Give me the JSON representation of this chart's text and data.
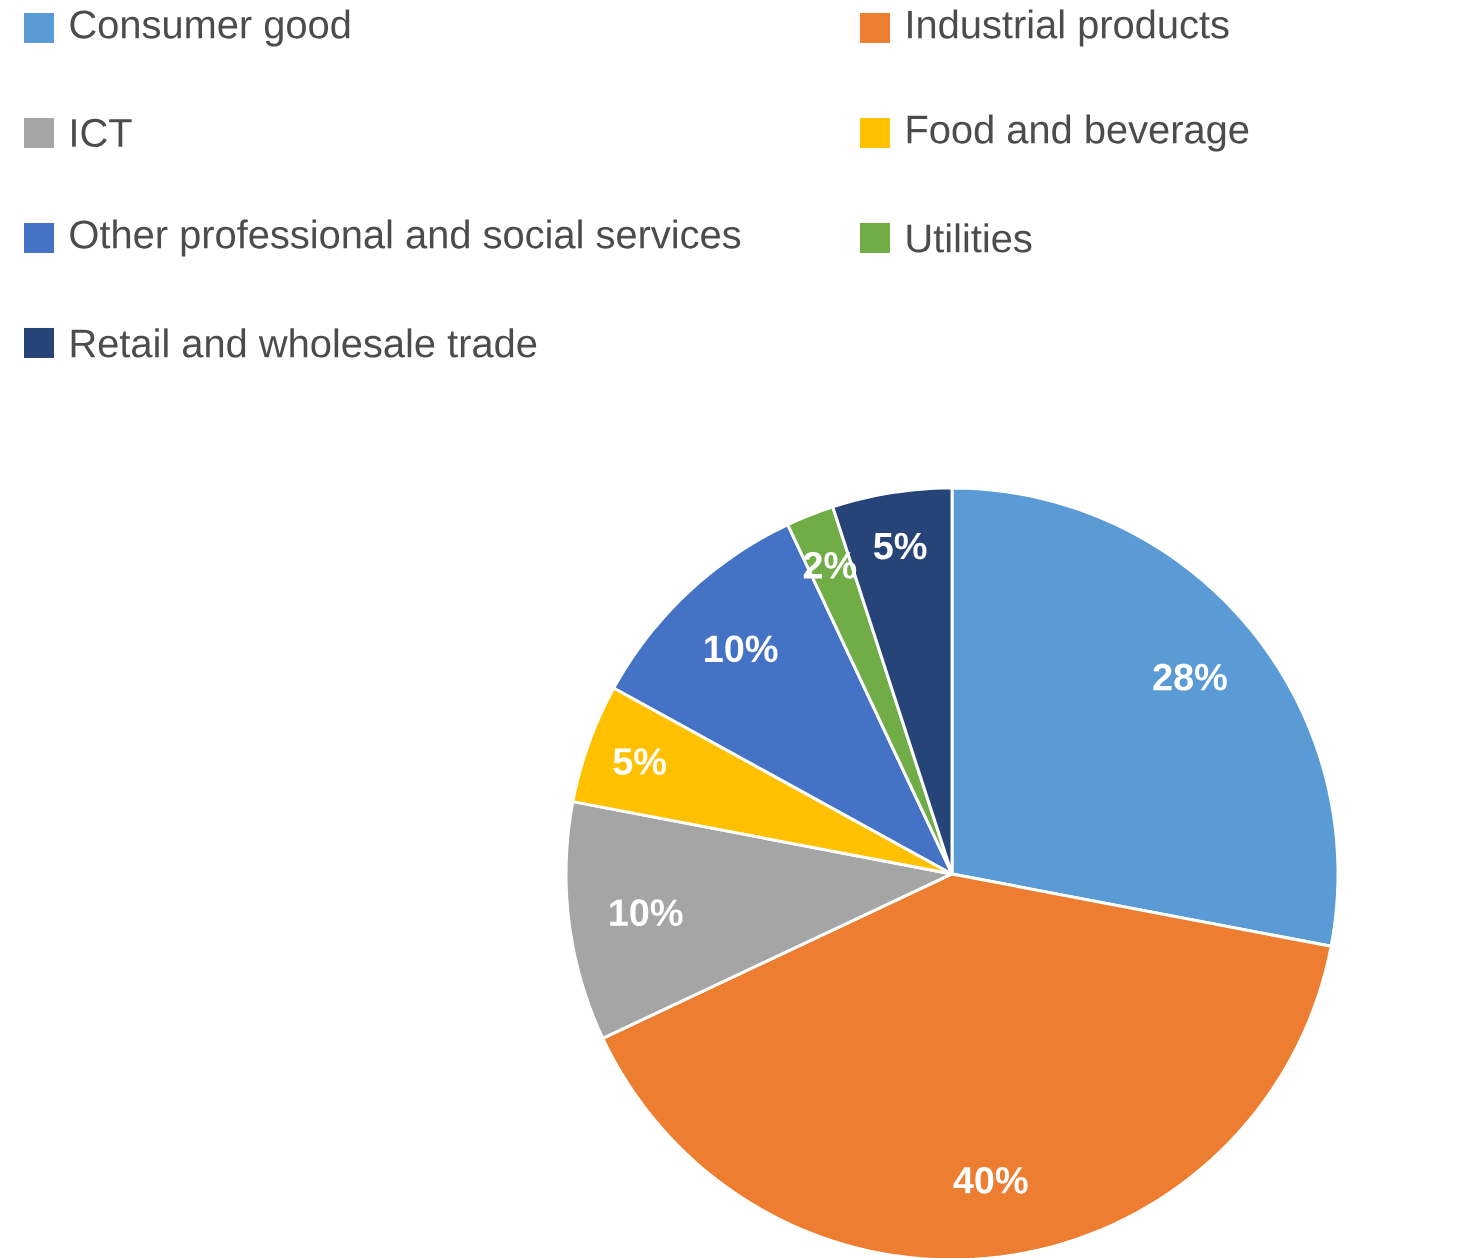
{
  "chart_data": {
    "type": "pie",
    "categories": [
      "Consumer good",
      "Industrial products",
      "ICT",
      "Food and beverage",
      "Other professional and social services",
      "Utilities",
      "Retail and wholesale trade"
    ],
    "values": [
      28,
      40,
      10,
      5,
      10,
      2,
      5
    ],
    "colors": [
      "#5b9bd5",
      "#ed7d31",
      "#a5a5a5",
      "#ffc000",
      "#4472c4",
      "#70ad47",
      "#264478"
    ],
    "value_labels": [
      "28%",
      "40%",
      "10%",
      "5%",
      "10%",
      "2%",
      "5%"
    ],
    "legend": "top"
  }
}
